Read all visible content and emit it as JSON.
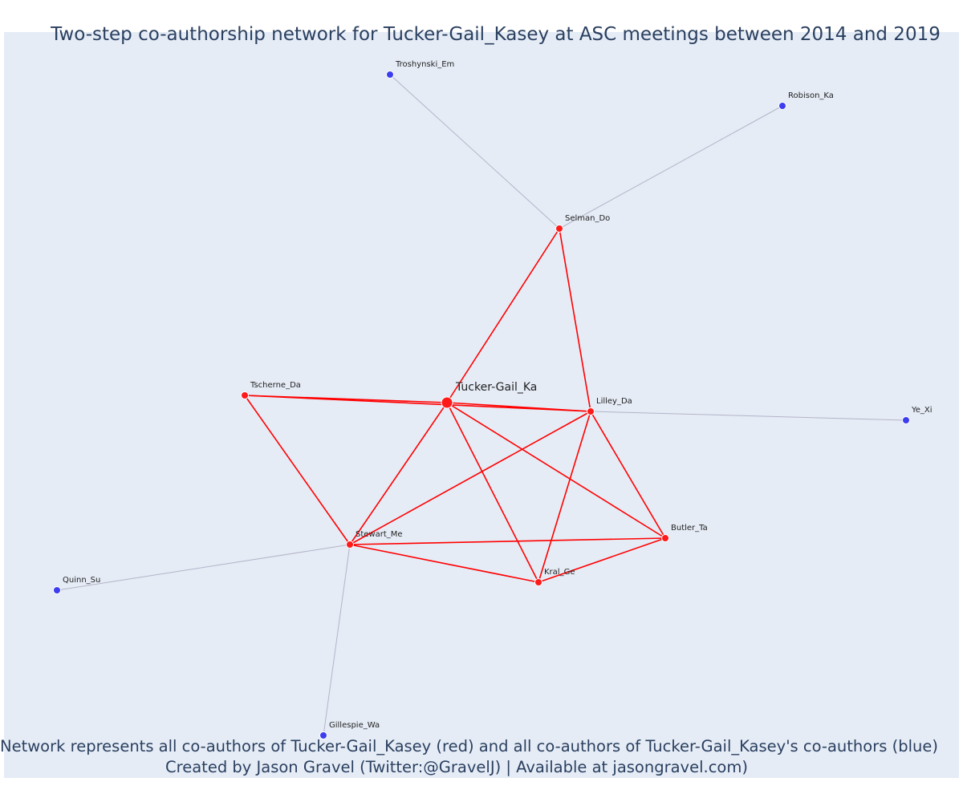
{
  "title": "Two-step co-authorship network for Tucker-Gail_Kasey at ASC meetings between 2014 and 2019",
  "caption": {
    "line1": "Network represents all co-authors of Tucker-Gail_Kasey (red) and all co-authors of Tucker-Gail_Kasey's co-authors (blue)",
    "line2": "Created by Jason Gravel (Twitter:@GravelJ) | Available at jasongravel.com)"
  },
  "colors": {
    "plot_background": "#e5ecf6",
    "first_step": "#ff1a1a",
    "second_step": "#3d3df0",
    "first_step_edge": "#ff0000",
    "second_step_edge": "#b4b4c8"
  },
  "chart_data": {
    "type": "network",
    "nodes": [
      {
        "id": "Tucker-Gail_Ka",
        "group": "focal"
      },
      {
        "id": "Selman_Do",
        "group": "coauthor"
      },
      {
        "id": "Lilley_Da",
        "group": "coauthor"
      },
      {
        "id": "Tscherne_Da",
        "group": "coauthor"
      },
      {
        "id": "Stewart_Me",
        "group": "coauthor"
      },
      {
        "id": "Butler_Ta",
        "group": "coauthor"
      },
      {
        "id": "Kral_Ge",
        "group": "coauthor"
      },
      {
        "id": "Troshynski_Em",
        "group": "second_step"
      },
      {
        "id": "Robison_Ka",
        "group": "second_step"
      },
      {
        "id": "Ye_Xi",
        "group": "second_step"
      },
      {
        "id": "Quinn_Su",
        "group": "second_step"
      },
      {
        "id": "Gillespie_Wa",
        "group": "second_step"
      }
    ],
    "edges": [
      {
        "source": "Tucker-Gail_Ka",
        "target": "Selman_Do",
        "type": "first_step"
      },
      {
        "source": "Tucker-Gail_Ka",
        "target": "Tscherne_Da",
        "type": "first_step"
      },
      {
        "source": "Tucker-Gail_Ka",
        "target": "Lilley_Da",
        "type": "first_step"
      },
      {
        "source": "Tucker-Gail_Ka",
        "target": "Stewart_Me",
        "type": "first_step"
      },
      {
        "source": "Tucker-Gail_Ka",
        "target": "Kral_Ge",
        "type": "first_step"
      },
      {
        "source": "Tucker-Gail_Ka",
        "target": "Butler_Ta",
        "type": "first_step"
      },
      {
        "source": "Selman_Do",
        "target": "Lilley_Da",
        "type": "first_step"
      },
      {
        "source": "Tscherne_Da",
        "target": "Lilley_Da",
        "type": "first_step"
      },
      {
        "source": "Tscherne_Da",
        "target": "Stewart_Me",
        "type": "first_step"
      },
      {
        "source": "Lilley_Da",
        "target": "Stewart_Me",
        "type": "first_step"
      },
      {
        "source": "Lilley_Da",
        "target": "Kral_Ge",
        "type": "first_step"
      },
      {
        "source": "Lilley_Da",
        "target": "Butler_Ta",
        "type": "first_step"
      },
      {
        "source": "Stewart_Me",
        "target": "Butler_Ta",
        "type": "first_step"
      },
      {
        "source": "Stewart_Me",
        "target": "Kral_Ge",
        "type": "first_step"
      },
      {
        "source": "Kral_Ge",
        "target": "Butler_Ta",
        "type": "first_step"
      },
      {
        "source": "Selman_Do",
        "target": "Troshynski_Em",
        "type": "second_step"
      },
      {
        "source": "Selman_Do",
        "target": "Robison_Ka",
        "type": "second_step"
      },
      {
        "source": "Lilley_Da",
        "target": "Ye_Xi",
        "type": "second_step"
      },
      {
        "source": "Stewart_Me",
        "target": "Quinn_Su",
        "type": "second_step"
      },
      {
        "source": "Stewart_Me",
        "target": "Gillespie_Wa",
        "type": "second_step"
      }
    ]
  }
}
